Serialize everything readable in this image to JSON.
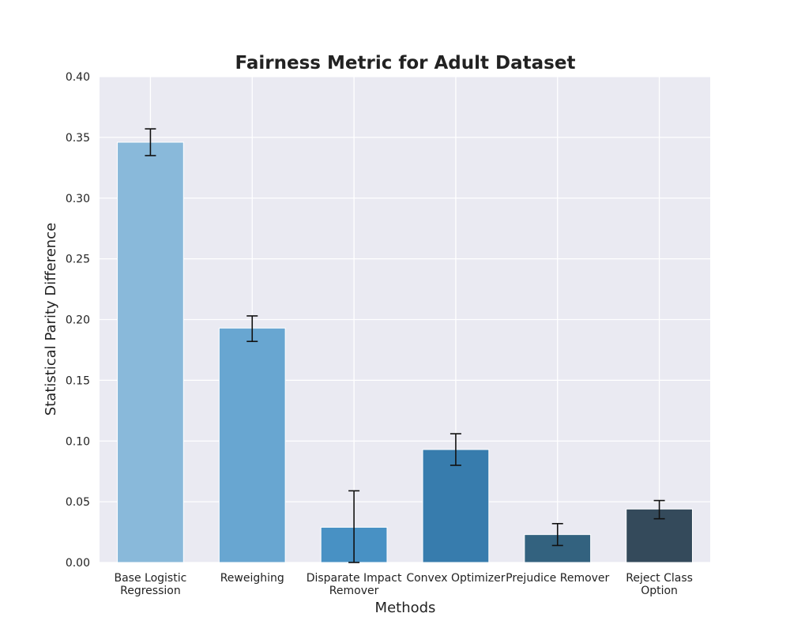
{
  "chart_data": {
    "type": "bar",
    "title": "Fairness Metric for Adult Dataset",
    "xlabel": "Methods",
    "ylabel": "Statistical Parity Difference",
    "ylim": [
      0,
      0.4
    ],
    "yticks": [
      "0.00",
      "0.05",
      "0.10",
      "0.15",
      "0.20",
      "0.25",
      "0.30",
      "0.35",
      "0.40"
    ],
    "grid": true,
    "categories": [
      [
        "Base Logistic",
        "Regression"
      ],
      [
        "Reweighing"
      ],
      [
        "Disparate Impact",
        "Remover"
      ],
      [
        "Convex Optimizer"
      ],
      [
        "Prejudice Remover"
      ],
      [
        "Reject Class",
        "Option"
      ]
    ],
    "values": [
      0.346,
      0.193,
      0.029,
      0.093,
      0.023,
      0.044
    ],
    "error_low": [
      0.335,
      0.182,
      0.0,
      0.08,
      0.014,
      0.036
    ],
    "error_high": [
      0.357,
      0.203,
      0.059,
      0.106,
      0.032,
      0.051
    ],
    "colors": [
      "#89b9da",
      "#68a6d1",
      "#4891c4",
      "#377cad",
      "#33627f",
      "#344a5b"
    ],
    "background_color": "#eaeaf2"
  }
}
